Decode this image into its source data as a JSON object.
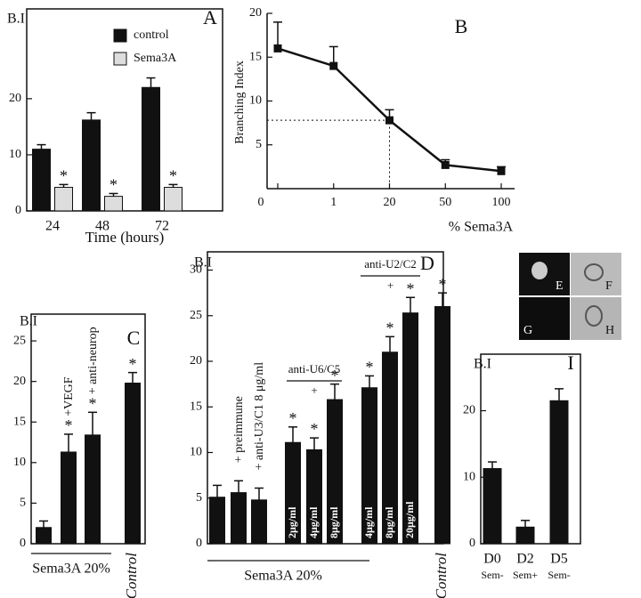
{
  "chart_data": [
    {
      "type": "bar",
      "panel": "A",
      "y_label": "B.I",
      "x_label": "Time (hours)",
      "categories": [
        "24",
        "48",
        "72"
      ],
      "series": [
        {
          "name": "control",
          "color": "#111111",
          "values": [
            11,
            16.2,
            22
          ],
          "errors": [
            0.8,
            1.3,
            1.7
          ]
        },
        {
          "name": "Sema3A",
          "color": "#dddddd",
          "values": [
            4.2,
            2.6,
            4.2
          ],
          "errors": [
            0.5,
            0.5,
            0.5
          ],
          "markers": [
            "*",
            "*",
            "*"
          ]
        }
      ],
      "ylim": [
        0,
        36
      ],
      "yticks": [
        0,
        10,
        20
      ]
    },
    {
      "type": "line",
      "panel": "B",
      "y_label": "Branching Index",
      "x_label": "% Sema3A",
      "x_origin_label": "0",
      "categories": [
        null,
        "1",
        "20",
        "50",
        "100"
      ],
      "color": "#111111",
      "values": [
        16,
        14,
        7.8,
        2.7,
        2
      ],
      "errors": [
        3,
        2.2,
        1.2,
        0.6,
        0.5
      ],
      "ylim": [
        0,
        20
      ],
      "yticks": [
        5,
        10,
        15,
        20
      ]
    },
    {
      "type": "bar",
      "panel": "C",
      "y_label": "B.I",
      "group_label": "Sema3A 20%",
      "categories": [
        null,
        null,
        null,
        "Control"
      ],
      "color": "#111111",
      "values": [
        2,
        11.3,
        13.4,
        19.8
      ],
      "errors": [
        0.8,
        2.2,
        2.8,
        1.3
      ],
      "markers": [
        null,
        "*",
        "*",
        "*"
      ],
      "annotations": [
        null,
        "+VEGF",
        "+ anti-neurop",
        null
      ],
      "ylim": [
        0,
        28.3
      ],
      "yticks": [
        0,
        5,
        10,
        15,
        20,
        25
      ]
    },
    {
      "type": "bar",
      "panel": "D",
      "y_label": "B.I",
      "group_label": "Sema3A 20%",
      "categories": [
        null,
        null,
        null,
        null,
        null,
        null,
        null,
        null,
        null,
        "Control"
      ],
      "color": "#111111",
      "values": [
        5.1,
        5.6,
        4.8,
        11.1,
        10.3,
        15.8,
        17.1,
        21,
        25.3,
        26
      ],
      "errors": [
        1.3,
        1.3,
        1.3,
        1.7,
        1.3,
        1.7,
        1.3,
        1.7,
        1.7,
        1.5
      ],
      "markers": [
        null,
        null,
        null,
        "*",
        "*",
        "*",
        "*",
        "*",
        "*",
        "*"
      ],
      "annotations": [
        null,
        "+ preimmune",
        "+ anti-U3/C1 8 μg/ml",
        null,
        null,
        null,
        null,
        null,
        null,
        null
      ],
      "bar_labels": [
        null,
        null,
        null,
        "2μg/ml",
        "4μg/ml",
        "8μg/ml",
        "4μg/ml",
        "8μg/ml",
        "20μg/ml",
        null
      ],
      "brackets": [
        {
          "label": "anti-U6/C5",
          "sub": "+"
        },
        {
          "label": "anti-U2/C2",
          "sub": "+"
        }
      ],
      "ylim": [
        0,
        32
      ],
      "yticks": [
        0,
        5,
        10,
        15,
        20,
        25,
        30
      ]
    },
    {
      "type": "bar",
      "panel": "I",
      "y_label": "B.I",
      "categories": [
        "D0",
        "D2",
        "D5"
      ],
      "category_sublabels": [
        "Sem-",
        "Sem+",
        "Sem-"
      ],
      "color": "#111111",
      "values": [
        11.3,
        2.5,
        21.5
      ],
      "errors": [
        1,
        1,
        1.8
      ],
      "ylim": [
        0,
        28.5
      ],
      "yticks": [
        0,
        10,
        20
      ]
    }
  ],
  "images": {
    "labels": [
      "E",
      "F",
      "G",
      "H"
    ]
  }
}
